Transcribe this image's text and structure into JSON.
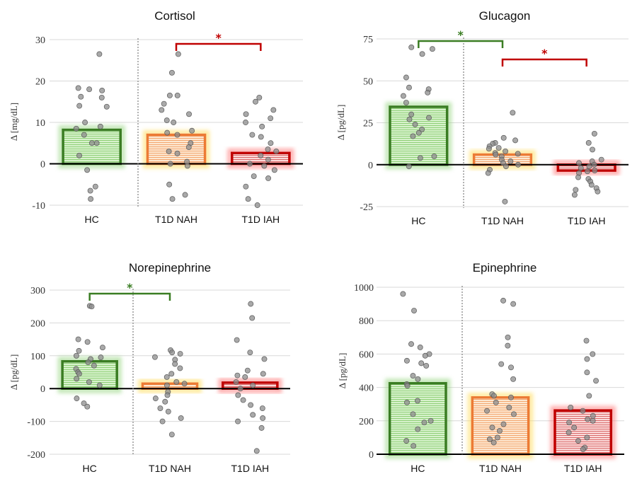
{
  "colors": {
    "HC": {
      "stroke": "#3a7d23",
      "fill": "#c9ecb9",
      "glow": "#8fd27a"
    },
    "T1D NAH": {
      "stroke": "#ec7b35",
      "fill": "#fde2c6",
      "glow": "#ffd94a"
    },
    "T1D IAH": {
      "stroke": "#c00000",
      "fill": "#f9cfcf",
      "glow": "#ff6b6b"
    },
    "sig_red": "#c00000",
    "sig_green": "#3a7d23",
    "dots": "#8c8c8c"
  },
  "chart_data": [
    {
      "type": "bar",
      "title": "Cortisol",
      "ylabel": "Δ [mg/dL]",
      "ylim": [
        -10,
        30
      ],
      "yticks": [
        -10,
        0,
        10,
        20,
        30
      ],
      "categories": [
        "HC",
        "T1D NAH",
        "T1D IAH"
      ],
      "values": [
        8.2,
        7.0,
        2.6
      ],
      "points": [
        [
          26.5,
          18.3,
          18.0,
          17.7,
          16.2,
          16.0,
          14.0,
          13.8,
          10.0,
          9.0,
          8.5,
          7.0,
          5.0,
          5.0,
          2.0,
          -1.5,
          -5.5,
          -6.5,
          -8.5
        ],
        [
          26.5,
          22.0,
          16.5,
          16.5,
          14.5,
          13.0,
          12.0,
          10.5,
          10.0,
          8.0,
          7.5,
          7.0,
          5.0,
          4.0,
          3.0,
          2.5,
          0.5,
          0.0,
          -0.5,
          -5.0,
          -7.5,
          -8.5
        ],
        [
          16.0,
          15.0,
          13.0,
          12.0,
          11.0,
          10.0,
          9.0,
          7.0,
          6.5,
          5.0,
          3.5,
          3.0,
          2.0,
          1.0,
          0.0,
          -0.5,
          -1.5,
          -3.0,
          -3.5,
          -5.5,
          -8.5,
          -10.0
        ]
      ],
      "significance": [
        {
          "from": "T1D NAH",
          "to": "T1D IAH",
          "label": "*",
          "color": "red"
        }
      ]
    },
    {
      "type": "bar",
      "title": "Glucagon",
      "ylabel": "Δ [pg/dL]",
      "ylim": [
        -25,
        75
      ],
      "yticks": [
        -25,
        0,
        25,
        50,
        75
      ],
      "categories": [
        "HC",
        "T1D NAH",
        "T1D IAH"
      ],
      "values": [
        34.5,
        6.0,
        -3.5
      ],
      "points": [
        [
          70.0,
          69.0,
          66.0,
          52.0,
          46.0,
          45.0,
          43.0,
          41.0,
          37.0,
          30.0,
          28.0,
          27.0,
          24.0,
          21.0,
          19.0,
          17.0,
          5.0,
          4.0,
          -1.0
        ],
        [
          31.0,
          16.0,
          14.5,
          13.0,
          12.5,
          11.0,
          10.0,
          9.5,
          8.0,
          7.0,
          6.5,
          6.0,
          5.0,
          3.0,
          2.0,
          1.0,
          0.0,
          -1.0,
          -3.0,
          -5.0,
          -22.0
        ],
        [
          18.5,
          13.0,
          9.0,
          3.0,
          2.0,
          1.0,
          0.0,
          -1.0,
          -2.0,
          -3.5,
          -4.0,
          -5.0,
          -7.5,
          -8.5,
          -10.0,
          -12.0,
          -14.0,
          -15.0,
          -16.0,
          -18.0
        ]
      ],
      "significance": [
        {
          "from": "HC",
          "to": "T1D NAH",
          "label": "*",
          "color": "green"
        },
        {
          "from": "T1D NAH",
          "to": "T1D IAH",
          "label": "*",
          "color": "red"
        }
      ]
    },
    {
      "type": "bar",
      "title": "Norepinephrine",
      "ylabel": "Δ [pg/dL]",
      "ylim": [
        -200,
        300
      ],
      "yticks": [
        -200,
        -100,
        0,
        100,
        200,
        300
      ],
      "categories": [
        "HC",
        "T1D NAH",
        "T1D IAH"
      ],
      "values": [
        83,
        15,
        18
      ],
      "points": [
        [
          252,
          250,
          150,
          142,
          125,
          115,
          100,
          95,
          90,
          80,
          70,
          60,
          50,
          45,
          30,
          20,
          10,
          -30,
          -45,
          -55
        ],
        [
          117,
          110,
          106,
          96,
          88,
          75,
          62,
          45,
          35,
          20,
          15,
          10,
          -10,
          -20,
          -30,
          -40,
          -60,
          -70,
          -90,
          -100,
          -140
        ],
        [
          258,
          215,
          148,
          110,
          90,
          55,
          45,
          40,
          35,
          20,
          10,
          0,
          -20,
          -35,
          -50,
          -60,
          -80,
          -90,
          -100,
          -120,
          -190
        ]
      ],
      "significance": [
        {
          "from": "HC",
          "to": "T1D NAH",
          "label": "*",
          "color": "green"
        }
      ]
    },
    {
      "type": "bar",
      "title": "Epinephrine",
      "ylabel": "Δ [pg/dL]",
      "ylim": [
        0,
        1000
      ],
      "yticks": [
        0,
        200,
        400,
        600,
        800,
        1000
      ],
      "categories": [
        "HC",
        "T1D NAH",
        "T1D IAH"
      ],
      "values": [
        425,
        340,
        262
      ],
      "points": [
        [
          960,
          860,
          660,
          640,
          600,
          590,
          560,
          545,
          530,
          470,
          450,
          420,
          410,
          320,
          310,
          240,
          200,
          190,
          150,
          80,
          50
        ],
        [
          920,
          900,
          700,
          650,
          540,
          520,
          450,
          360,
          350,
          340,
          310,
          280,
          260,
          240,
          180,
          160,
          140,
          100,
          90,
          70
        ],
        [
          680,
          600,
          570,
          490,
          440,
          350,
          280,
          260,
          230,
          210,
          200,
          190,
          160,
          130,
          100,
          80,
          40,
          30
        ]
      ],
      "significance": []
    }
  ]
}
